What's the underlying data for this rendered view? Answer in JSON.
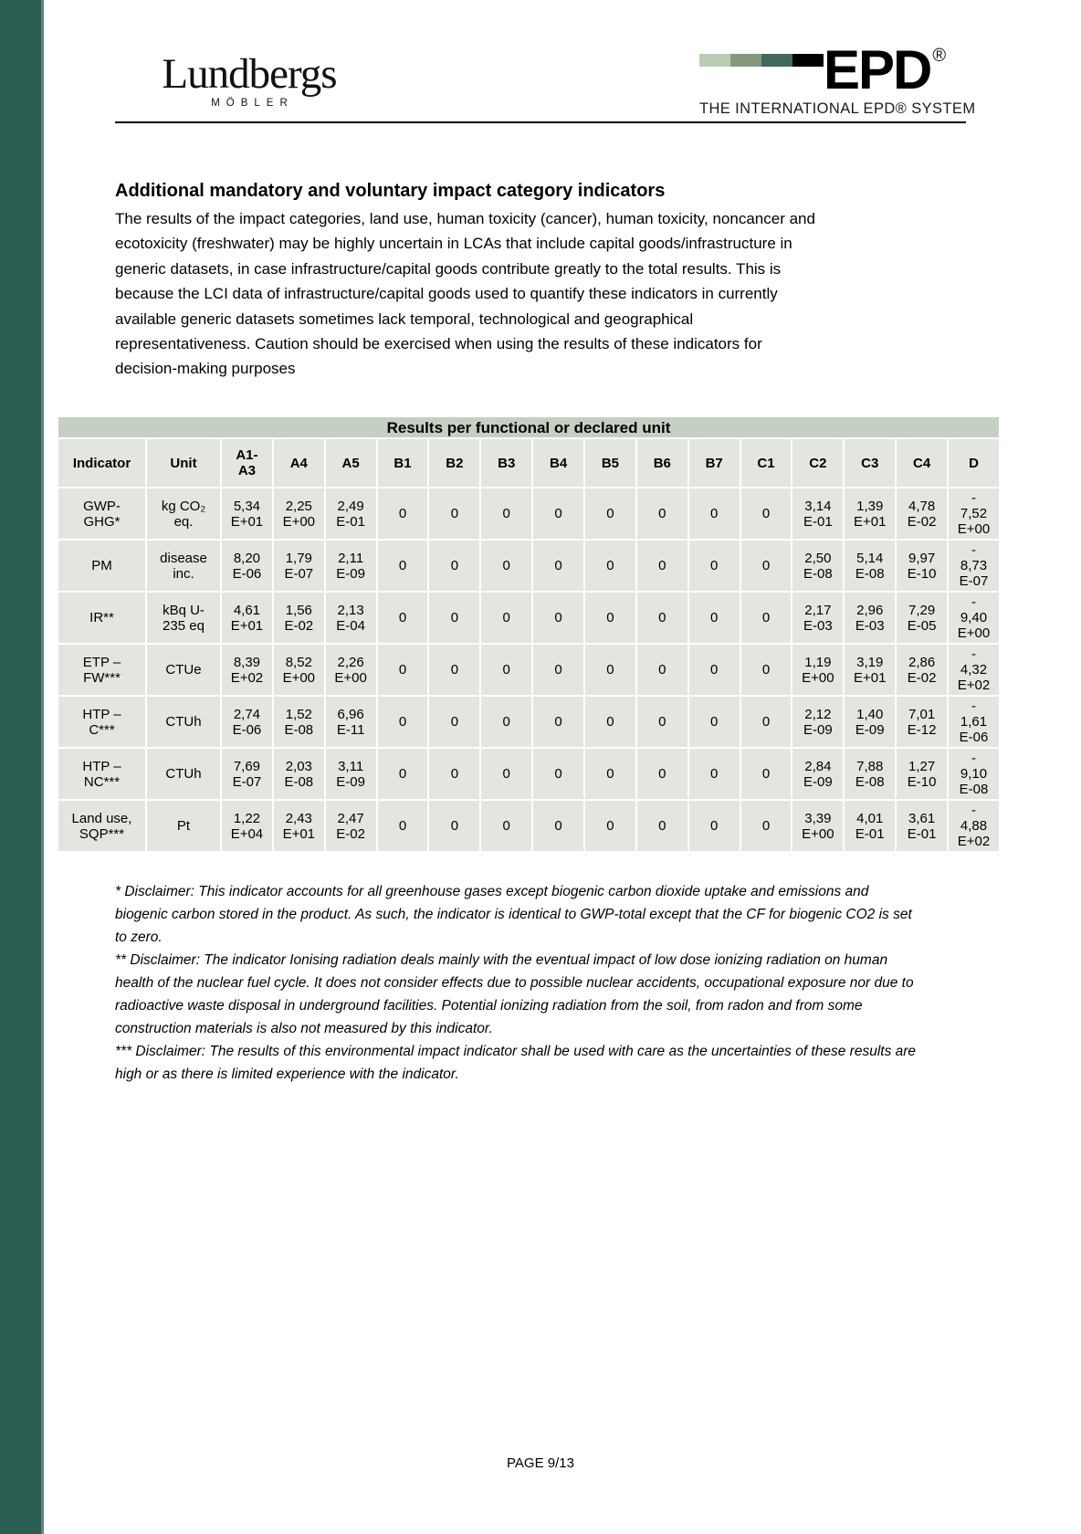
{
  "accent": {
    "band_color": "#2c5f54",
    "band_edge_color": "#618878"
  },
  "header": {
    "brand_name": "Lundbergs",
    "brand_subtitle": "MÖBLER",
    "epd": {
      "text": "EPD",
      "registered": "®",
      "tagline": "THE INTERNATIONAL EPD® SYSTEM",
      "bar_colors": [
        "#b9ccb2",
        "#84997c",
        "#3f6a5b",
        "#000000"
      ]
    }
  },
  "section": {
    "heading": "Additional mandatory and voluntary impact category indicators",
    "intro": "The results of the impact categories, land use, human toxicity (cancer), human toxicity, noncancer and\necotoxicity (freshwater) may be highly uncertain in LCAs that include capital goods/infrastructure in\ngeneric datasets, in case infrastructure/capital goods contribute greatly to the total results. This is\nbecause the LCI data of infrastructure/capital goods used to quantify these indicators in currently\navailable generic datasets sometimes lack temporal, technological and geographical\nrepresentativeness. Caution should be exercised when using the results of these indicators for\ndecision-making purposes"
  },
  "table": {
    "title": "Results per functional or declared unit",
    "title_bg": "#c5cfc2",
    "cell_bg": "#e3e6e0",
    "columns": [
      "Indicator",
      "Unit",
      "A1-\nA3",
      "A4",
      "A5",
      "B1",
      "B2",
      "B3",
      "B4",
      "B5",
      "B6",
      "B7",
      "C1",
      "C2",
      "C3",
      "C4",
      "D"
    ],
    "rows": [
      {
        "indicator": "GWP-\nGHG*",
        "unit": "kg CO₂\neq.",
        "values": [
          "5,34\nE+01",
          "2,25\nE+00",
          "2,49\nE-01",
          "0",
          "0",
          "0",
          "0",
          "0",
          "0",
          "0",
          "0",
          "3,14\nE-01",
          "1,39\nE+01",
          "4,78\nE-02",
          "-\n7,52\nE+00"
        ]
      },
      {
        "indicator": "PM",
        "unit": "disease\ninc.",
        "values": [
          "8,20\nE-06",
          "1,79\nE-07",
          "2,11\nE-09",
          "0",
          "0",
          "0",
          "0",
          "0",
          "0",
          "0",
          "0",
          "2,50\nE-08",
          "5,14\nE-08",
          "9,97\nE-10",
          "-\n8,73\nE-07"
        ]
      },
      {
        "indicator": "IR**",
        "unit": "kBq U-\n235 eq",
        "values": [
          "4,61\nE+01",
          "1,56\nE-02",
          "2,13\nE-04",
          "0",
          "0",
          "0",
          "0",
          "0",
          "0",
          "0",
          "0",
          "2,17\nE-03",
          "2,96\nE-03",
          "7,29\nE-05",
          "-\n9,40\nE+00"
        ]
      },
      {
        "indicator": "ETP –\nFW***",
        "unit": "CTUe",
        "values": [
          "8,39\nE+02",
          "8,52\nE+00",
          "2,26\nE+00",
          "0",
          "0",
          "0",
          "0",
          "0",
          "0",
          "0",
          "0",
          "1,19\nE+00",
          "3,19\nE+01",
          "2,86\nE-02",
          "-\n4,32\nE+02"
        ]
      },
      {
        "indicator": "HTP –\nC***",
        "unit": "CTUh",
        "values": [
          "2,74\nE-06",
          "1,52\nE-08",
          "6,96\nE-11",
          "0",
          "0",
          "0",
          "0",
          "0",
          "0",
          "0",
          "0",
          "2,12\nE-09",
          "1,40\nE-09",
          "7,01\nE-12",
          "-\n1,61\nE-06"
        ]
      },
      {
        "indicator": "HTP –\nNC***",
        "unit": "CTUh",
        "values": [
          "7,69\nE-07",
          "2,03\nE-08",
          "3,11\nE-09",
          "0",
          "0",
          "0",
          "0",
          "0",
          "0",
          "0",
          "0",
          "2,84\nE-09",
          "7,88\nE-08",
          "1,27\nE-10",
          "-\n9,10\nE-08"
        ]
      },
      {
        "indicator": "Land use,\nSQP***",
        "unit": "Pt",
        "values": [
          "1,22\nE+04",
          "2,43\nE+01",
          "2,47\nE-02",
          "0",
          "0",
          "0",
          "0",
          "0",
          "0",
          "0",
          "0",
          "3,39\nE+00",
          "4,01\nE-01",
          "3,61\nE-01",
          "-\n4,88\nE+02"
        ]
      }
    ]
  },
  "disclaimers": [
    "* Disclaimer: This indicator accounts for all greenhouse gases except biogenic carbon dioxide uptake and emissions and\nbiogenic carbon stored in the product. As such, the indicator is identical to GWP-total except that the CF for biogenic CO2 is set\nto zero.",
    "** Disclaimer: The indicator Ionising radiation deals mainly with the eventual impact of low dose ionizing radiation on human\nhealth of the nuclear fuel cycle. It does not consider effects due to possible nuclear accidents, occupational exposure nor due to\nradioactive waste disposal in underground facilities. Potential ionizing radiation from the soil, from radon and from some\nconstruction materials is also not measured by this indicator.",
    "*** Disclaimer: The results of this environmental impact indicator shall be used with care as the uncertainties of these results are\nhigh or as there is limited experience with the indicator."
  ],
  "footer": {
    "page_label": "PAGE 9/13"
  }
}
